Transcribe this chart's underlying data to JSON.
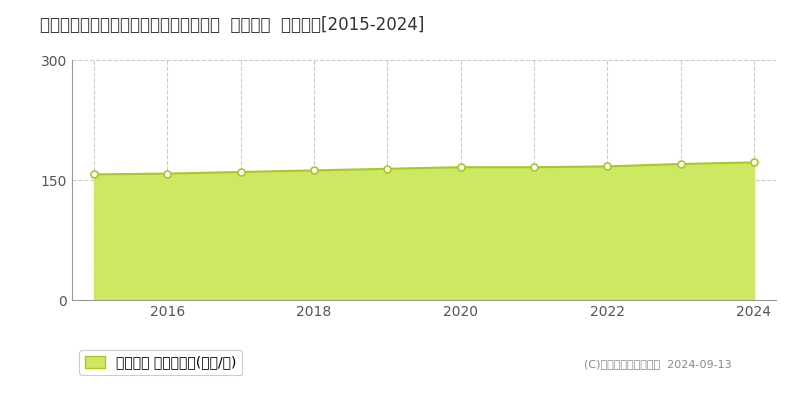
{
  "title": "東京都杉並区久我山５丁目２８３番７外  地価公示  地価推移[2015-2024]",
  "years": [
    2015,
    2016,
    2017,
    2018,
    2019,
    2020,
    2021,
    2022,
    2023,
    2024
  ],
  "values": [
    157,
    158,
    160,
    162,
    164,
    166,
    166,
    167,
    170,
    172
  ],
  "ylim": [
    0,
    300
  ],
  "yticks": [
    0,
    150,
    300
  ],
  "line_color": "#aac820",
  "fill_color": "#cde862",
  "marker_color": "#ffffff",
  "marker_edge_color": "#aac820",
  "background_color": "#ffffff",
  "grid_color": "#cccccc",
  "legend_label": "地価公示 平均坪単価(万円/坪)",
  "copyright_text": "(C)土地価格ドットコム  2024-09-13",
  "title_fontsize": 12,
  "tick_fontsize": 10,
  "legend_fontsize": 10
}
